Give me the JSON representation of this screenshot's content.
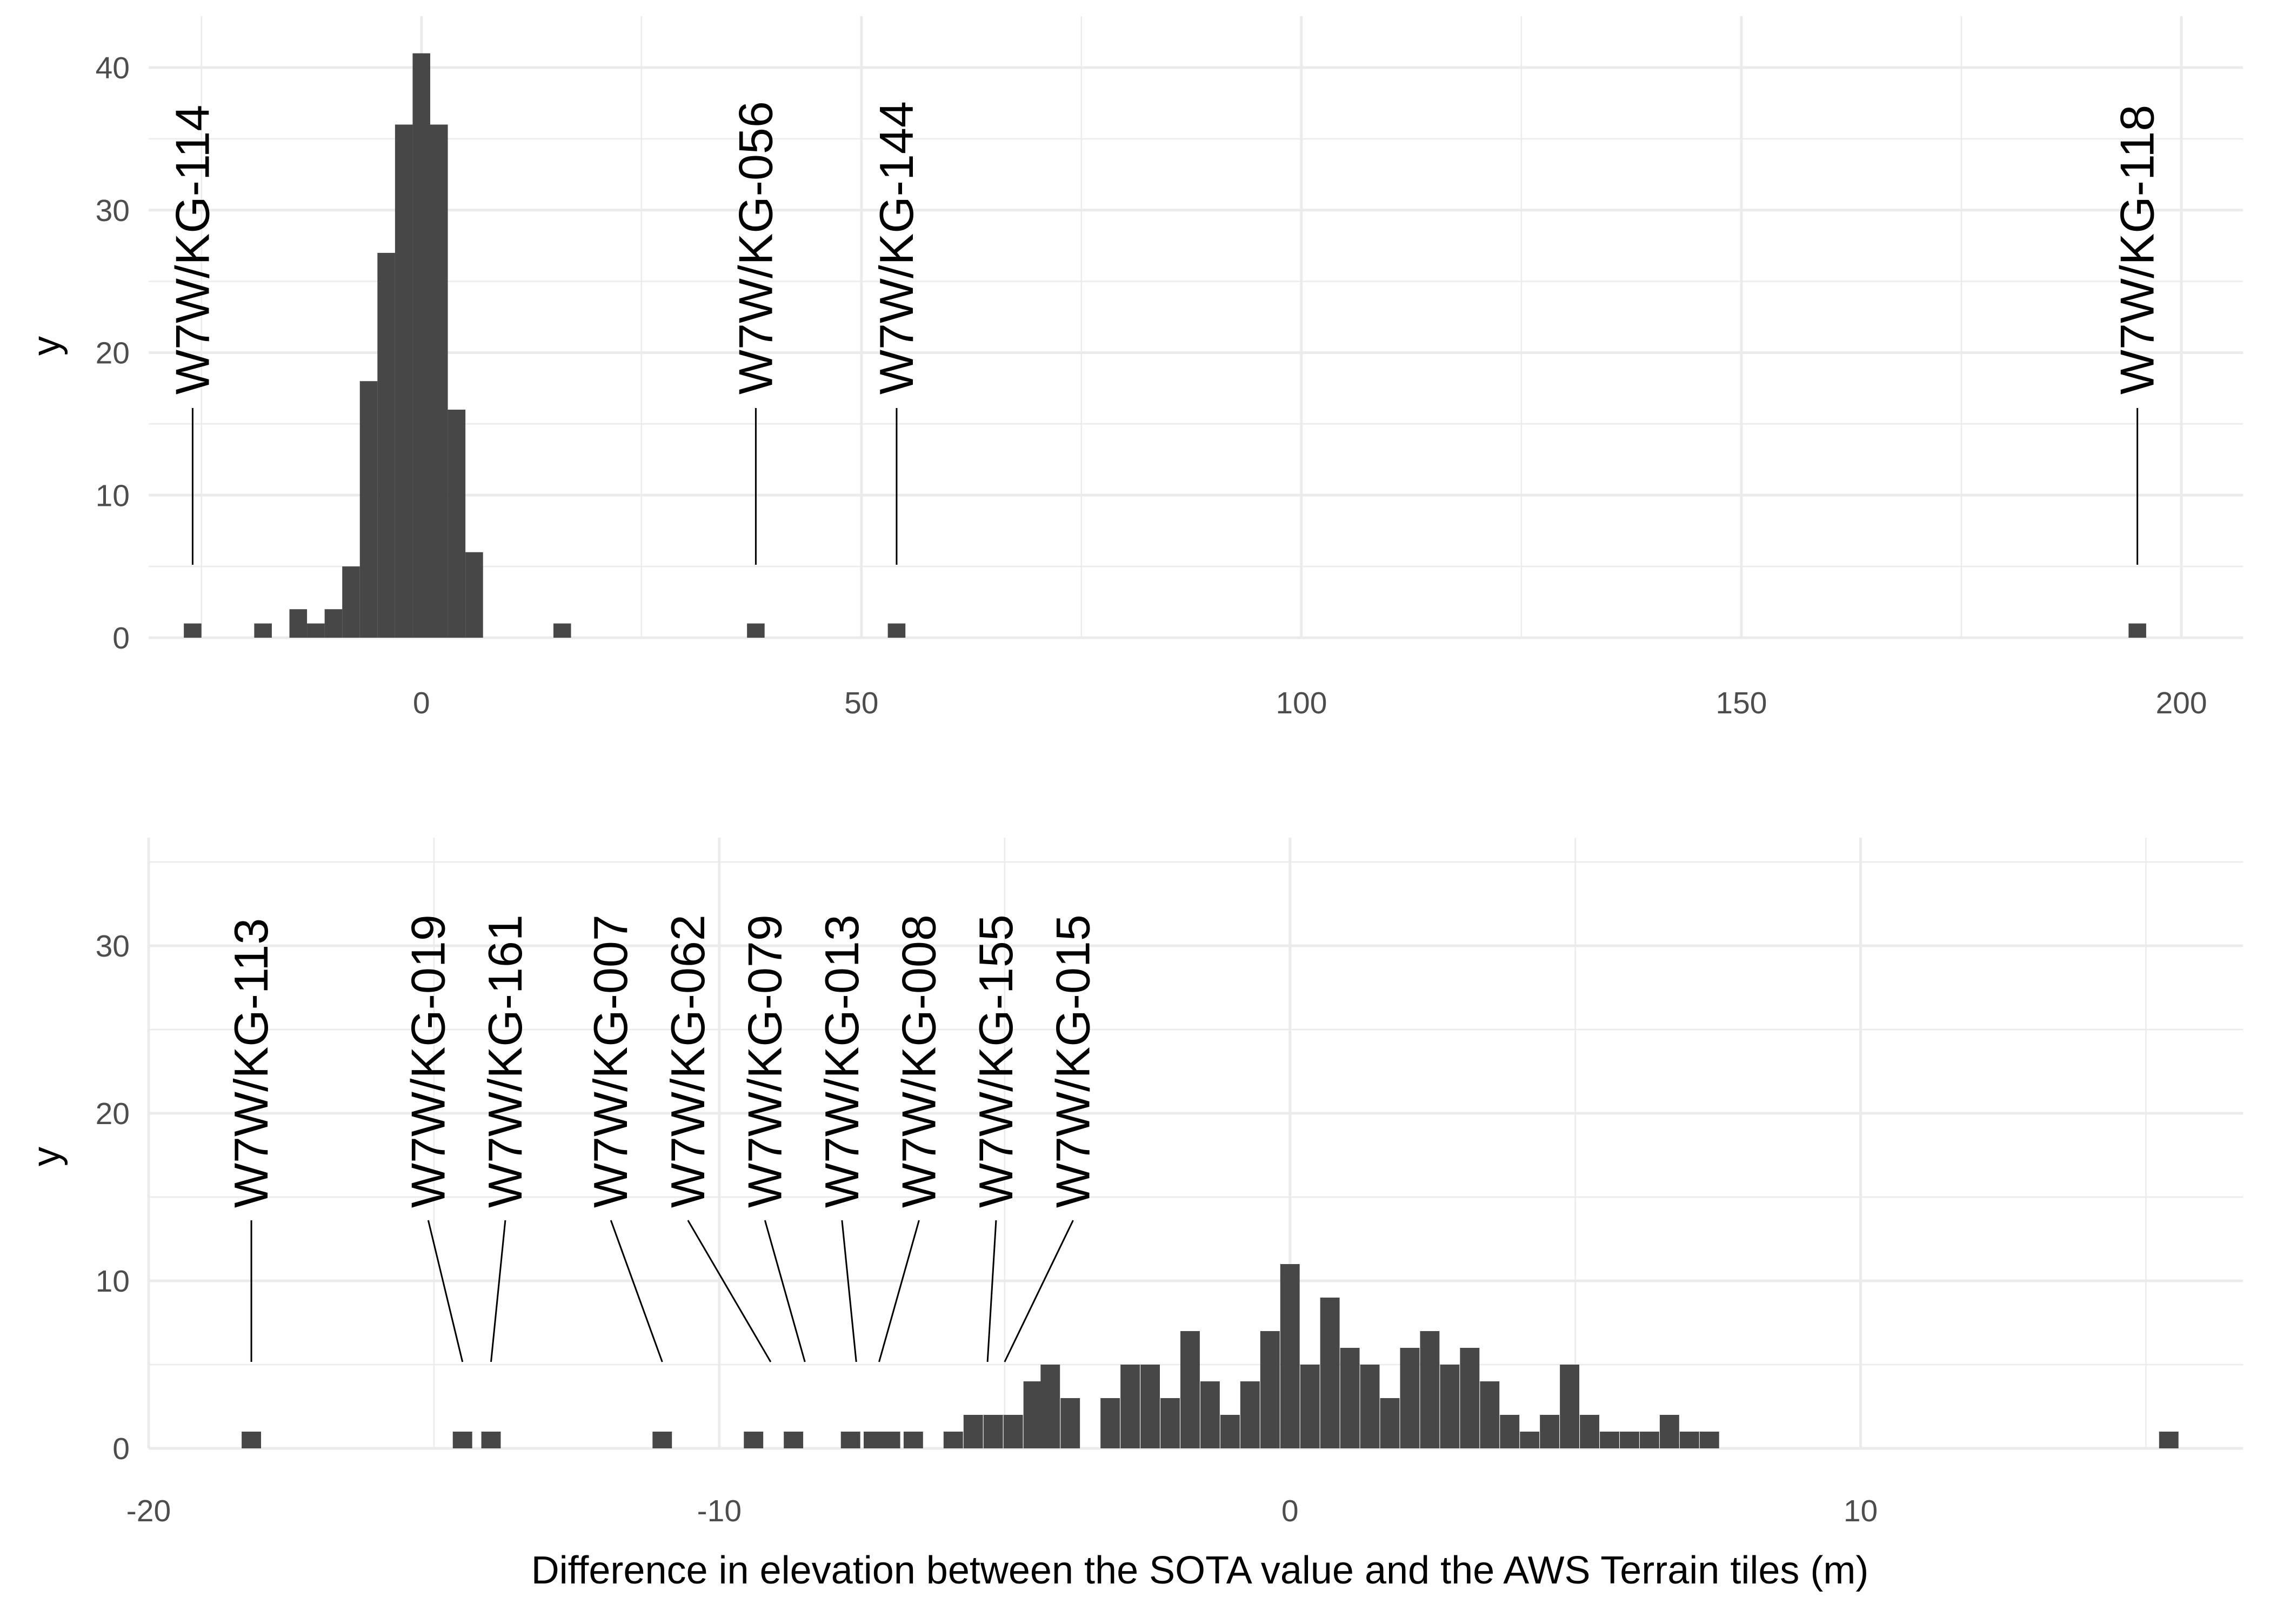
{
  "figure": {
    "xlabel": "Difference in elevation between the SOTA value and the AWS Terrain tiles (m)"
  },
  "colors": {
    "bar": "#474747",
    "grid": "#ebebeb",
    "tick_text": "#4d4d4d",
    "text": "#000000"
  },
  "chart_data": [
    {
      "type": "bar",
      "panel": "top",
      "xlabel": "",
      "ylabel": "y",
      "xlim": [
        -31,
        207
      ],
      "ylim": [
        0,
        41
      ],
      "xticks": [
        0,
        50,
        100,
        150,
        200
      ],
      "yticks": [
        0,
        10,
        20,
        30,
        40
      ],
      "grid": true,
      "bin_width": 2,
      "bins": [
        {
          "x": -26,
          "count": 1
        },
        {
          "x": -18,
          "count": 1
        },
        {
          "x": -14,
          "count": 2
        },
        {
          "x": -12,
          "count": 1
        },
        {
          "x": -10,
          "count": 2
        },
        {
          "x": -8,
          "count": 5
        },
        {
          "x": -6,
          "count": 18
        },
        {
          "x": -4,
          "count": 27
        },
        {
          "x": -2,
          "count": 36
        },
        {
          "x": 0,
          "count": 41
        },
        {
          "x": 2,
          "count": 36
        },
        {
          "x": 4,
          "count": 16
        },
        {
          "x": 6,
          "count": 6
        },
        {
          "x": 16,
          "count": 1
        },
        {
          "x": 38,
          "count": 1
        },
        {
          "x": 54,
          "count": 1
        },
        {
          "x": 195,
          "count": 1
        }
      ],
      "annotations": [
        {
          "label": "W7W/KG-114",
          "x": -26,
          "label_x": -26
        },
        {
          "label": "W7W/KG-056",
          "x": 38,
          "label_x": 38
        },
        {
          "label": "W7W/KG-144",
          "x": 54,
          "label_x": 54
        },
        {
          "label": "W7W/KG-118",
          "x": 195,
          "label_x": 195
        }
      ]
    },
    {
      "type": "bar",
      "panel": "bottom",
      "xlabel": "Difference in elevation between the SOTA value and the AWS Terrain tiles (m)",
      "ylabel": "y",
      "xlim": [
        -20,
        16.7
      ],
      "ylim": [
        0,
        36
      ],
      "xticks": [
        -20,
        -10,
        0,
        10
      ],
      "yticks": [
        0,
        10,
        20,
        30
      ],
      "grid": true,
      "bin_width": 0.34,
      "bins": [
        {
          "x": -18.2,
          "count": 1
        },
        {
          "x": -14.5,
          "count": 1
        },
        {
          "x": -14.0,
          "count": 1
        },
        {
          "x": -11.0,
          "count": 1
        },
        {
          "x": -9.4,
          "count": 1
        },
        {
          "x": -8.7,
          "count": 1
        },
        {
          "x": -7.7,
          "count": 1
        },
        {
          "x": -7.3,
          "count": 1
        },
        {
          "x": -7.0,
          "count": 1
        },
        {
          "x": -6.6,
          "count": 1
        },
        {
          "x": -5.9,
          "count": 1
        },
        {
          "x": -5.55,
          "count": 2
        },
        {
          "x": -5.2,
          "count": 2
        },
        {
          "x": -4.85,
          "count": 2
        },
        {
          "x": -4.5,
          "count": 4
        },
        {
          "x": -4.2,
          "count": 5
        },
        {
          "x": -3.85,
          "count": 3
        },
        {
          "x": -3.15,
          "count": 3
        },
        {
          "x": -2.8,
          "count": 5
        },
        {
          "x": -2.45,
          "count": 5
        },
        {
          "x": -2.1,
          "count": 3
        },
        {
          "x": -1.75,
          "count": 7
        },
        {
          "x": -1.4,
          "count": 4
        },
        {
          "x": -1.05,
          "count": 2
        },
        {
          "x": -0.7,
          "count": 4
        },
        {
          "x": -0.35,
          "count": 7
        },
        {
          "x": 0.0,
          "count": 11
        },
        {
          "x": 0.35,
          "count": 5
        },
        {
          "x": 0.7,
          "count": 9
        },
        {
          "x": 1.05,
          "count": 6
        },
        {
          "x": 1.4,
          "count": 5
        },
        {
          "x": 1.75,
          "count": 3
        },
        {
          "x": 2.1,
          "count": 6
        },
        {
          "x": 2.45,
          "count": 7
        },
        {
          "x": 2.8,
          "count": 5
        },
        {
          "x": 3.15,
          "count": 6
        },
        {
          "x": 3.5,
          "count": 4
        },
        {
          "x": 3.85,
          "count": 2
        },
        {
          "x": 4.2,
          "count": 1
        },
        {
          "x": 4.55,
          "count": 2
        },
        {
          "x": 4.9,
          "count": 5
        },
        {
          "x": 5.25,
          "count": 2
        },
        {
          "x": 5.6,
          "count": 1
        },
        {
          "x": 5.95,
          "count": 1
        },
        {
          "x": 6.3,
          "count": 1
        },
        {
          "x": 6.65,
          "count": 2
        },
        {
          "x": 7.0,
          "count": 1
        },
        {
          "x": 7.35,
          "count": 1
        },
        {
          "x": 15.4,
          "count": 1
        }
      ],
      "annotations": [
        {
          "label": "W7W/KG-113",
          "x": -18.2,
          "label_x": -18.2
        },
        {
          "label": "W7W/KG-019",
          "x": -14.5,
          "label_x": -15.1
        },
        {
          "label": "W7W/KG-161",
          "x": -14.0,
          "label_x": -13.75
        },
        {
          "label": "W7W/KG-007",
          "x": -11.0,
          "label_x": -11.9
        },
        {
          "label": "W7W/KG-062",
          "x": -9.1,
          "label_x": -10.55
        },
        {
          "label": "W7W/KG-079",
          "x": -8.5,
          "label_x": -9.2
        },
        {
          "label": "W7W/KG-013",
          "x": -7.6,
          "label_x": -7.85
        },
        {
          "label": "W7W/KG-008",
          "x": -7.2,
          "label_x": -6.5
        },
        {
          "label": "W7W/KG-155",
          "x": -5.3,
          "label_x": -5.15
        },
        {
          "label": "W7W/KG-015",
          "x": -5.0,
          "label_x": -3.8
        }
      ]
    }
  ]
}
